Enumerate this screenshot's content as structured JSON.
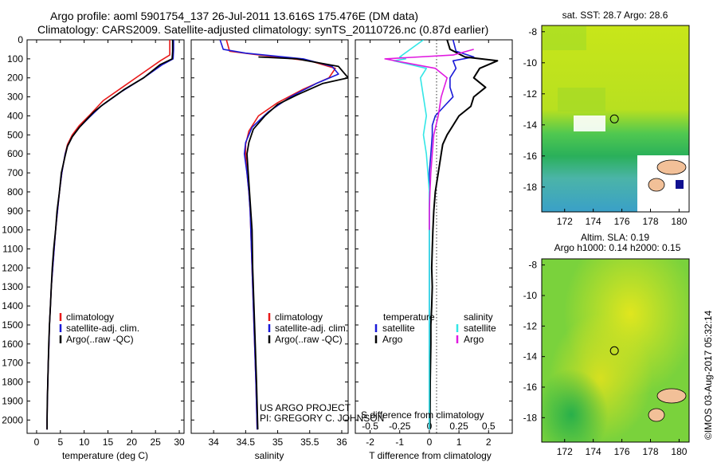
{
  "header": {
    "title_line1": "Argo profile: aoml 5901754_137 26-Jul-2011 13.616S 175.476E (DM data)",
    "title_line2": "Climatology: CARS2009. Satellite-adjusted climatology: synTS_20110726.nc (0.87d earlier)"
  },
  "colors": {
    "red": "#e81a1a",
    "blue": "#1a1ad8",
    "black": "#000000",
    "cyan": "#33e6e6",
    "magenta": "#e01ae0"
  },
  "chart_data": [
    {
      "type": "line",
      "id": "temperature",
      "xlabel": "temperature (deg C)",
      "xlim": [
        -2,
        31
      ],
      "xticks": [
        0,
        5,
        10,
        15,
        20,
        25,
        30
      ],
      "ylim": [
        2070,
        0
      ],
      "yticks": [
        0,
        100,
        200,
        300,
        400,
        500,
        600,
        700,
        800,
        900,
        1000,
        1100,
        1200,
        1300,
        1400,
        1500,
        1600,
        1700,
        1800,
        1900,
        2000
      ],
      "legend": {
        "items": [
          {
            "label": "climatology",
            "color": "red"
          },
          {
            "label": "satellite-adj. clim.",
            "color": "blue"
          },
          {
            "label": "Argo(..raw -QC)",
            "color": "black"
          }
        ]
      },
      "series": [
        {
          "name": "climatology",
          "color": "red",
          "points": [
            [
              28,
              0
            ],
            [
              28,
              80
            ],
            [
              26,
              110
            ],
            [
              22,
              180
            ],
            [
              18,
              250
            ],
            [
              14,
              320
            ],
            [
              11,
              400
            ],
            [
              9,
              450
            ],
            [
              7.5,
              500
            ],
            [
              6.5,
              550
            ],
            [
              6,
              600
            ],
            [
              5.3,
              700
            ],
            [
              4.8,
              800
            ],
            [
              4.4,
              900
            ],
            [
              4,
              1000
            ],
            [
              3.7,
              1100
            ],
            [
              3.4,
              1200
            ],
            [
              3.1,
              1300
            ],
            [
              2.9,
              1400
            ],
            [
              2.7,
              1500
            ],
            [
              2.6,
              1600
            ],
            [
              2.45,
              1700
            ],
            [
              2.35,
              1800
            ],
            [
              2.25,
              1900
            ],
            [
              2.2,
              2000
            ],
            [
              2.2,
              2050
            ]
          ]
        },
        {
          "name": "satellite",
          "color": "blue",
          "points": [
            [
              28.8,
              0
            ],
            [
              28.8,
              50
            ],
            [
              28.7,
              100
            ],
            [
              26.5,
              130
            ],
            [
              22.5,
              200
            ],
            [
              18,
              270
            ],
            [
              13.5,
              350
            ],
            [
              11,
              410
            ],
            [
              9,
              460
            ],
            [
              7.5,
              510
            ],
            [
              6.5,
              560
            ],
            [
              6,
              600
            ],
            [
              5.3,
              700
            ],
            [
              4.8,
              800
            ],
            [
              4.4,
              900
            ],
            [
              4,
              1000
            ],
            [
              3.7,
              1100
            ],
            [
              3.4,
              1200
            ],
            [
              3.1,
              1300
            ],
            [
              2.9,
              1400
            ],
            [
              2.7,
              1500
            ],
            [
              2.6,
              1600
            ],
            [
              2.45,
              1700
            ],
            [
              2.35,
              1800
            ],
            [
              2.25,
              1900
            ],
            [
              2.2,
              2000
            ],
            [
              2.2,
              2050
            ]
          ]
        },
        {
          "name": "Argo",
          "color": "black",
          "points": [
            [
              28.6,
              0
            ],
            [
              28.6,
              60
            ],
            [
              28.5,
              100
            ],
            [
              26,
              130
            ],
            [
              22.5,
              200
            ],
            [
              18.5,
              260
            ],
            [
              14,
              340
            ],
            [
              12,
              380
            ],
            [
              10.5,
              420
            ],
            [
              9,
              460
            ],
            [
              7.5,
              510
            ],
            [
              6.5,
              560
            ],
            [
              6,
              610
            ],
            [
              5.2,
              700
            ],
            [
              4.8,
              800
            ],
            [
              4.3,
              900
            ],
            [
              4,
              1000
            ],
            [
              3.6,
              1100
            ],
            [
              3.3,
              1200
            ],
            [
              3.1,
              1300
            ],
            [
              2.9,
              1400
            ],
            [
              2.7,
              1500
            ],
            [
              2.55,
              1600
            ],
            [
              2.45,
              1700
            ],
            [
              2.35,
              1800
            ],
            [
              2.25,
              1900
            ],
            [
              2.2,
              2000
            ],
            [
              2.2,
              2050
            ]
          ]
        }
      ]
    },
    {
      "type": "line",
      "id": "salinity",
      "xlabel": "salinity",
      "xlim": [
        33.65,
        36.1
      ],
      "xticks": [
        34,
        34.5,
        35,
        35.5,
        36
      ],
      "legend": {
        "items": [
          {
            "label": "climatology",
            "color": "red"
          },
          {
            "label": "satellite-adj. clim.",
            "color": "blue"
          },
          {
            "label": "Argo(..raw -QC)",
            "color": "black"
          }
        ]
      },
      "annotations": [
        "US ARGO PROJECT",
        "PI: GREGORY C. JOHNSON"
      ],
      "series": [
        {
          "name": "climatology",
          "color": "red",
          "points": [
            [
              34.2,
              0
            ],
            [
              34.25,
              60
            ],
            [
              34.6,
              75
            ],
            [
              35.5,
              110
            ],
            [
              35.9,
              150
            ],
            [
              35.8,
              200
            ],
            [
              35.4,
              260
            ],
            [
              35,
              330
            ],
            [
              34.7,
              400
            ],
            [
              34.55,
              480
            ],
            [
              34.5,
              550
            ],
            [
              34.5,
              600
            ],
            [
              34.52,
              700
            ],
            [
              34.55,
              800
            ],
            [
              34.57,
              900
            ],
            [
              34.58,
              1000
            ],
            [
              34.6,
              1200
            ],
            [
              34.62,
              1400
            ],
            [
              34.64,
              1600
            ],
            [
              34.66,
              1800
            ],
            [
              34.68,
              2050
            ]
          ]
        },
        {
          "name": "satellite",
          "color": "blue",
          "points": [
            [
              34.1,
              0
            ],
            [
              34.15,
              50
            ],
            [
              34.5,
              70
            ],
            [
              35.4,
              100
            ],
            [
              35.85,
              140
            ],
            [
              35.95,
              180
            ],
            [
              35.6,
              230
            ],
            [
              35.2,
              300
            ],
            [
              34.85,
              380
            ],
            [
              34.6,
              460
            ],
            [
              34.5,
              540
            ],
            [
              34.48,
              600
            ],
            [
              34.52,
              700
            ],
            [
              34.55,
              800
            ],
            [
              34.57,
              900
            ],
            [
              34.58,
              1000
            ],
            [
              34.6,
              1200
            ],
            [
              34.62,
              1400
            ],
            [
              34.64,
              1600
            ],
            [
              34.66,
              1800
            ],
            [
              34.68,
              2050
            ]
          ]
        },
        {
          "name": "Argo",
          "color": "black",
          "points": [
            [
              34.7,
              90
            ],
            [
              35.3,
              100
            ],
            [
              35.95,
              140
            ],
            [
              36.1,
              200
            ],
            [
              35.7,
              230
            ],
            [
              35.3,
              290
            ],
            [
              35,
              340
            ],
            [
              34.8,
              400
            ],
            [
              34.62,
              470
            ],
            [
              34.55,
              540
            ],
            [
              34.52,
              600
            ],
            [
              34.54,
              700
            ],
            [
              34.56,
              800
            ],
            [
              34.58,
              900
            ],
            [
              34.6,
              1000
            ],
            [
              34.61,
              1200
            ],
            [
              34.63,
              1400
            ],
            [
              34.65,
              1600
            ],
            [
              34.67,
              1800
            ],
            [
              34.69,
              2050
            ]
          ]
        }
      ]
    },
    {
      "type": "line",
      "id": "difference",
      "xlabel_top": "S difference from climatology",
      "xlabel_bottom": "T difference from climatology",
      "xlim": [
        -2.5,
        2.8
      ],
      "xticks_T": [
        -2,
        -1,
        0,
        1,
        2
      ],
      "xticks_S": [
        -0.5,
        -0.25,
        0,
        0.25,
        0.5
      ],
      "legend": {
        "temperature_title": "temperature",
        "salinity_title": "salinity",
        "items": [
          {
            "label": "satellite",
            "color": "blue",
            "group": "temperature"
          },
          {
            "label": "Argo",
            "color": "black",
            "group": "temperature"
          },
          {
            "label": "satellite",
            "color": "cyan",
            "group": "salinity"
          },
          {
            "label": "Argo",
            "color": "magenta",
            "group": "salinity"
          }
        ]
      },
      "series": [
        {
          "name": "T satellite",
          "color": "blue",
          "points": [
            [
              0.8,
              0
            ],
            [
              0.9,
              60
            ],
            [
              1.5,
              90
            ],
            [
              0.8,
              110
            ],
            [
              0.9,
              150
            ],
            [
              0.7,
              200
            ],
            [
              0.7,
              250
            ],
            [
              0.8,
              300
            ],
            [
              0.5,
              350
            ],
            [
              0.2,
              400
            ],
            [
              0.1,
              450
            ],
            [
              0.1,
              500
            ],
            [
              0.05,
              600
            ],
            [
              0,
              700
            ],
            [
              0,
              900
            ],
            [
              0,
              2050
            ]
          ]
        },
        {
          "name": "T Argo",
          "color": "black",
          "points": [
            [
              0.6,
              0
            ],
            [
              0.7,
              50
            ],
            [
              1.2,
              90
            ],
            [
              2.3,
              110
            ],
            [
              1.7,
              150
            ],
            [
              1.5,
              200
            ],
            [
              1.9,
              250
            ],
            [
              1.5,
              300
            ],
            [
              1.4,
              350
            ],
            [
              1,
              400
            ],
            [
              0.8,
              450
            ],
            [
              0.6,
              500
            ],
            [
              0.45,
              550
            ],
            [
              0.4,
              600
            ],
            [
              0.3,
              700
            ],
            [
              0.2,
              800
            ],
            [
              0.15,
              900
            ],
            [
              0.12,
              1000
            ],
            [
              0.1,
              1100
            ],
            [
              0.08,
              1200
            ],
            [
              0.1,
              1300
            ],
            [
              0.08,
              1400
            ],
            [
              0.05,
              1500
            ],
            [
              0.05,
              1600
            ],
            [
              0.03,
              1800
            ],
            [
              0.02,
              2050
            ]
          ]
        },
        {
          "name": "S satellite",
          "color": "cyan",
          "points": [
            [
              -0.2,
              0
            ],
            [
              -1,
              90
            ],
            [
              -0.8,
              100
            ],
            [
              -1.2,
              110
            ],
            [
              -0.1,
              150
            ],
            [
              -0.3,
              200
            ],
            [
              -0.2,
              300
            ],
            [
              -0.1,
              400
            ],
            [
              -0.2,
              500
            ],
            [
              -0.1,
              600
            ],
            [
              -0.05,
              700
            ],
            [
              0,
              800
            ],
            [
              0,
              1000
            ],
            [
              0,
              2050
            ]
          ]
        },
        {
          "name": "S Argo",
          "color": "magenta",
          "points": [
            [
              1.5,
              50
            ],
            [
              0.8,
              80
            ],
            [
              -1.5,
              100
            ],
            [
              0.2,
              150
            ],
            [
              0.6,
              200
            ],
            [
              0.4,
              300
            ],
            [
              0.3,
              400
            ],
            [
              0.15,
              500
            ],
            [
              0.1,
              600
            ],
            [
              0.05,
              700
            ],
            [
              0.02,
              800
            ],
            [
              0,
              900
            ],
            [
              0,
              1000
            ]
          ]
        }
      ]
    },
    {
      "type": "heatmap",
      "id": "sst_map",
      "title": "sat. SST: 28.7  Argo: 28.6",
      "xticks": [
        172,
        174,
        176,
        178,
        180
      ],
      "yticks": [
        -8,
        -10,
        -12,
        -14,
        -16,
        -18
      ],
      "xlim": [
        170.4,
        180.7
      ],
      "ylim": [
        -7.6,
        -19.6
      ],
      "argo_position": [
        175.476,
        -13.616
      ]
    },
    {
      "type": "heatmap",
      "id": "sla_map",
      "title_line1": "Altim. SLA: 0.19",
      "title_line2": "Argo h1000: 0.14 h2000: 0.15",
      "xticks": [
        172,
        174,
        176,
        178,
        180
      ],
      "yticks": [
        -8,
        -10,
        -12,
        -14,
        -16,
        -18
      ],
      "xlim": [
        170.4,
        180.7
      ],
      "ylim": [
        -7.6,
        -19.6
      ],
      "argo_position": [
        175.476,
        -13.616
      ]
    }
  ],
  "footer": {
    "credit": "©IMOS 03-Aug-2017 05:32:14"
  }
}
